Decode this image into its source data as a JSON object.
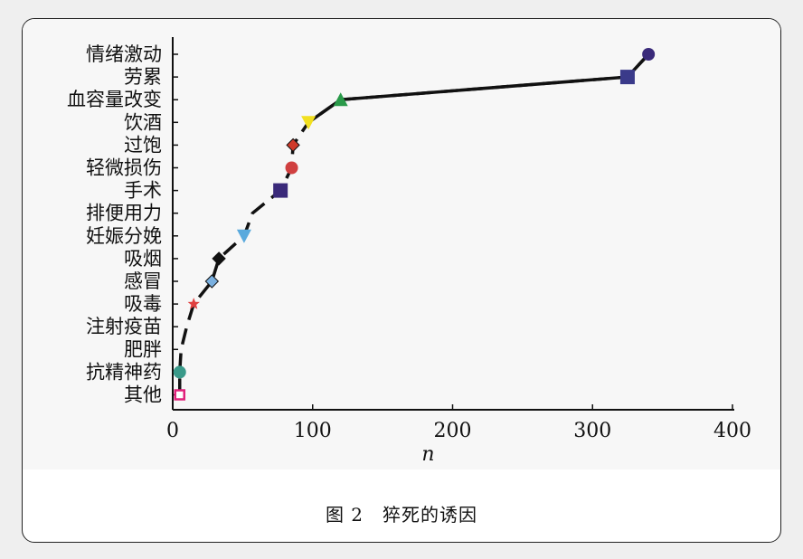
{
  "caption": "图 2　猝死的诱因",
  "chart_data": {
    "type": "line",
    "xlabel": "n",
    "xlim": [
      0,
      400
    ],
    "xticks": [
      0,
      100,
      200,
      300,
      400
    ],
    "categories": [
      "其他",
      "抗精神药",
      "肥胖",
      "注射疫苗",
      "吸毒",
      "感冒",
      "吸烟",
      "妊娠分娩",
      "排便用力",
      "手术",
      "轻微损伤",
      "过饱",
      "饮酒",
      "血容量改变",
      "劳累",
      "情绪激动"
    ],
    "values": [
      5,
      5,
      6,
      10,
      15,
      28,
      33,
      51,
      57,
      77,
      85,
      86,
      97,
      120,
      325,
      340
    ],
    "markers": [
      {
        "shape": "square-open",
        "color": "#e0207a"
      },
      {
        "shape": "circle",
        "color": "#3a9a8a"
      },
      {
        "shape": "none",
        "color": "#000000"
      },
      {
        "shape": "none",
        "color": "#000000"
      },
      {
        "shape": "star",
        "color": "#e04040"
      },
      {
        "shape": "diamond",
        "color": "#7ab0e0"
      },
      {
        "shape": "diamond",
        "color": "#111111"
      },
      {
        "shape": "triangle-down",
        "color": "#5aaadd"
      },
      {
        "shape": "none",
        "color": "#000000"
      },
      {
        "shape": "square",
        "color": "#3a2a7a"
      },
      {
        "shape": "circle",
        "color": "#d04040"
      },
      {
        "shape": "diamond",
        "color": "#d03a2a"
      },
      {
        "shape": "triangle-down",
        "color": "#f2e020"
      },
      {
        "shape": "triangle",
        "color": "#2a9a4a"
      },
      {
        "shape": "square",
        "color": "#3a3a8a"
      },
      {
        "shape": "circle",
        "color": "#3a2a7a"
      }
    ],
    "line_style": "dashed",
    "line_color": "#111111"
  }
}
